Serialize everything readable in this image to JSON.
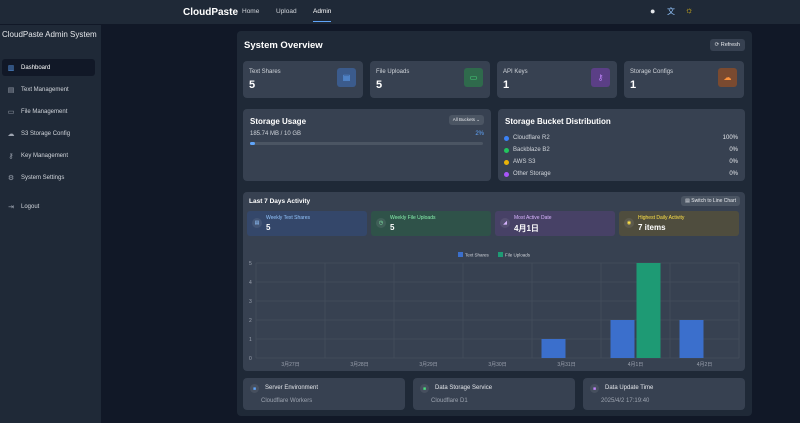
{
  "header": {
    "brand": "CloudPaste",
    "nav": [
      "Home",
      "Upload",
      "Admin"
    ],
    "active": "Admin",
    "icons": [
      "github-icon",
      "translate-icon",
      "sun-icon"
    ]
  },
  "sidebar": {
    "title": "CloudPaste Admin System",
    "items": [
      {
        "label": "Dashboard",
        "icon": "chart-icon",
        "active": true
      },
      {
        "label": "Text Management",
        "icon": "document-icon"
      },
      {
        "label": "File Management",
        "icon": "folder-icon"
      },
      {
        "label": "S3 Storage Config",
        "icon": "cloud-icon"
      },
      {
        "label": "Key Management",
        "icon": "key-icon"
      },
      {
        "label": "System Settings",
        "icon": "gear-icon"
      },
      {
        "label": "Logout",
        "icon": "logout-icon"
      }
    ]
  },
  "overview": {
    "title": "System Overview",
    "refresh": "Refresh",
    "stats": [
      {
        "label": "Text Shares",
        "value": "5",
        "color": "#60a5fa",
        "bg": "#3b5b8c"
      },
      {
        "label": "File Uploads",
        "value": "5",
        "color": "#4ade80",
        "bg": "#2f6a4c"
      },
      {
        "label": "API Keys",
        "value": "1",
        "color": "#c084fc",
        "bg": "#5b3f86"
      },
      {
        "label": "Storage Configs",
        "value": "1",
        "color": "#fb923c",
        "bg": "#7a4a30"
      }
    ]
  },
  "storage": {
    "title": "Storage Usage",
    "selector": "All Buckets",
    "used": "185.74 MB / 10 GB",
    "percent_label": "2%",
    "percent": 2
  },
  "distribution": {
    "title": "Storage Bucket Distribution",
    "items": [
      {
        "name": "Cloudflare R2",
        "pct": "100%",
        "color": "#3b82f6"
      },
      {
        "name": "Backblaze B2",
        "pct": "0%",
        "color": "#22c55e"
      },
      {
        "name": "AWS S3",
        "pct": "0%",
        "color": "#eab308"
      },
      {
        "name": "Other Storage",
        "pct": "0%",
        "color": "#a855f7"
      }
    ]
  },
  "activity": {
    "title": "Last 7 Days Activity",
    "switch": "Switch to Line Chart",
    "minis": [
      {
        "label": "Weekly Text Shares",
        "value": "5",
        "bg": "#34476a",
        "color": "#93c5fd"
      },
      {
        "label": "Weekly File Uploads",
        "value": "5",
        "bg": "#2f5249",
        "color": "#86efac"
      },
      {
        "label": "Most Active Date",
        "value": "4月1日",
        "bg": "#474166",
        "color": "#d8b4fe"
      },
      {
        "label": "Highest Daily Activity",
        "value": "7 items",
        "bg": "#4f4d3e",
        "color": "#fde047"
      }
    ]
  },
  "chart_data": {
    "type": "bar",
    "categories": [
      "3月27日",
      "3月28日",
      "3月29日",
      "3月30日",
      "3月31日",
      "4月1日",
      "4月2日"
    ],
    "series": [
      {
        "name": "Text Shares",
        "values": [
          0,
          0,
          0,
          0,
          1,
          2,
          2
        ],
        "color": "#3b6fcc"
      },
      {
        "name": "File Uploads",
        "values": [
          0,
          0,
          0,
          0,
          0,
          5,
          0
        ],
        "color": "#1e9a74"
      }
    ],
    "ylim": [
      0,
      5
    ],
    "yticks": [
      "0",
      "1",
      "2",
      "3",
      "4",
      "5"
    ],
    "grid": true,
    "legend": "top"
  },
  "footer": [
    {
      "label": "Server Environment",
      "value": "Cloudflare Workers",
      "color": "#60a5fa",
      "icon": "server-icon"
    },
    {
      "label": "Data Storage Service",
      "value": "Cloudflare D1",
      "color": "#4ade80",
      "icon": "database-icon"
    },
    {
      "label": "Data Update Time",
      "value": "2025/4/2 17:19:40",
      "color": "#c084fc",
      "icon": "clock-icon"
    }
  ]
}
